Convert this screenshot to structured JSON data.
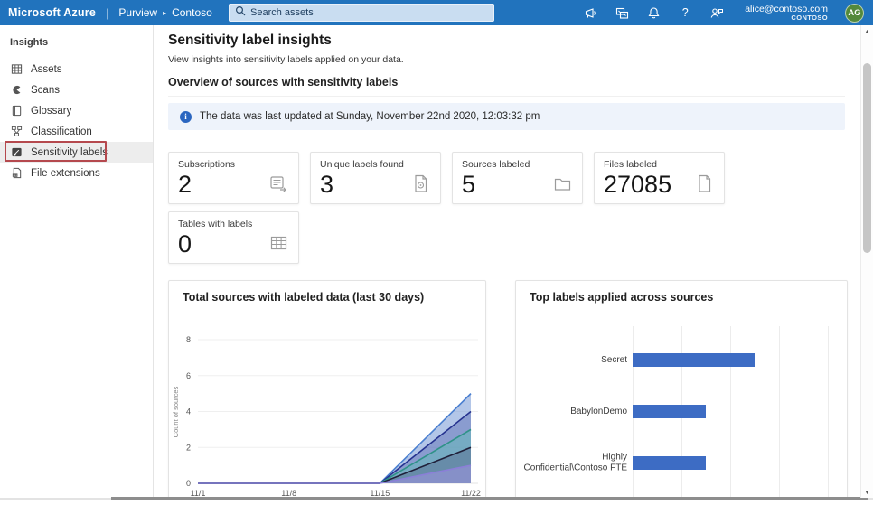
{
  "topbar": {
    "brand": "Microsoft Azure",
    "breadcrumb": {
      "app": "Purview",
      "instance": "Contoso"
    },
    "search": {
      "placeholder": "Search assets"
    },
    "user": {
      "email": "alice@contoso.com",
      "tenant": "CONTOSO",
      "initials": "AG"
    }
  },
  "icons": {
    "breadcrumb_chevron": "▸",
    "help": "?",
    "scroll_up": "▲",
    "scroll_down": "▼",
    "info": "i"
  },
  "sidebar": {
    "header": "Insights",
    "items": [
      {
        "label": "Assets",
        "icon": "assets-icon",
        "selected": false
      },
      {
        "label": "Scans",
        "icon": "scans-icon",
        "selected": false
      },
      {
        "label": "Glossary",
        "icon": "glossary-icon",
        "selected": false
      },
      {
        "label": "Classification",
        "icon": "classification-icon",
        "selected": false
      },
      {
        "label": "Sensitivity labels",
        "icon": "sensitivity-labels-icon",
        "selected": true,
        "annotated": true
      },
      {
        "label": "File extensions",
        "icon": "file-extensions-icon",
        "selected": false
      }
    ]
  },
  "page": {
    "title": "Sensitivity label insights",
    "subtitle": "View insights into sensitivity labels applied on your data.",
    "section_heading": "Overview of sources with sensitivity labels",
    "banner_text": "The data was last updated at Sunday, November 22nd 2020, 12:03:32 pm"
  },
  "cards": [
    {
      "label": "Subscriptions",
      "value": "2",
      "icon": "subscription-icon"
    },
    {
      "label": "Unique labels found",
      "value": "3",
      "icon": "labeled-file-icon"
    },
    {
      "label": "Sources labeled",
      "value": "5",
      "icon": "folder-icon"
    },
    {
      "label": "Files labeled",
      "value": "27085",
      "icon": "file-icon"
    },
    {
      "label": "Tables with labels",
      "value": "0",
      "icon": "table-icon"
    }
  ],
  "chart_data": [
    {
      "type": "area",
      "title": "Total sources with labeled data (last 30 days)",
      "xlabel": "",
      "ylabel": "Count of sources",
      "x": [
        "11/1",
        "11/8",
        "11/15",
        "11/22"
      ],
      "series": [
        {
          "name": "series-1",
          "values": [
            0,
            0,
            0,
            5
          ],
          "line": "#4a7fd0",
          "fill": "rgba(116,152,214,0.55)"
        },
        {
          "name": "series-2",
          "values": [
            0,
            0,
            0,
            4
          ],
          "line": "#25328f",
          "fill": "rgba(64,78,160,0.35)"
        },
        {
          "name": "series-3",
          "values": [
            0,
            0,
            0,
            3
          ],
          "line": "#2f9288",
          "fill": "rgba(94,190,180,0.45)"
        },
        {
          "name": "series-4",
          "values": [
            0,
            0,
            0,
            2
          ],
          "line": "#20203a",
          "fill": "rgba(70,70,110,0.30)"
        },
        {
          "name": "series-5",
          "values": [
            0,
            0,
            0,
            1
          ],
          "line": "#8b7fd8",
          "fill": "rgba(160,148,225,0.55)"
        }
      ],
      "ylim": [
        0,
        8
      ],
      "yticks": [
        0,
        2,
        4,
        6,
        8
      ],
      "grid": true,
      "legend": "none"
    },
    {
      "type": "bar",
      "orientation": "horizontal",
      "title": "Top labels applied across sources",
      "categories": [
        "Secret",
        "BabylonDemo",
        "Highly Confidential\\Contoso FTE"
      ],
      "values": [
        5,
        3,
        3
      ],
      "xlim": [
        0,
        8
      ],
      "xticks": [
        0,
        2,
        4,
        6,
        8
      ],
      "bar_color": "#3d6cc4",
      "grid": true,
      "legend": "none"
    }
  ],
  "colors": {
    "topbar": "#2173bd",
    "annotation_red": "#b5494e",
    "avatar_green": "#54893b",
    "banner_bg": "#eef3fb",
    "bar_blue": "#3d6cc4"
  }
}
